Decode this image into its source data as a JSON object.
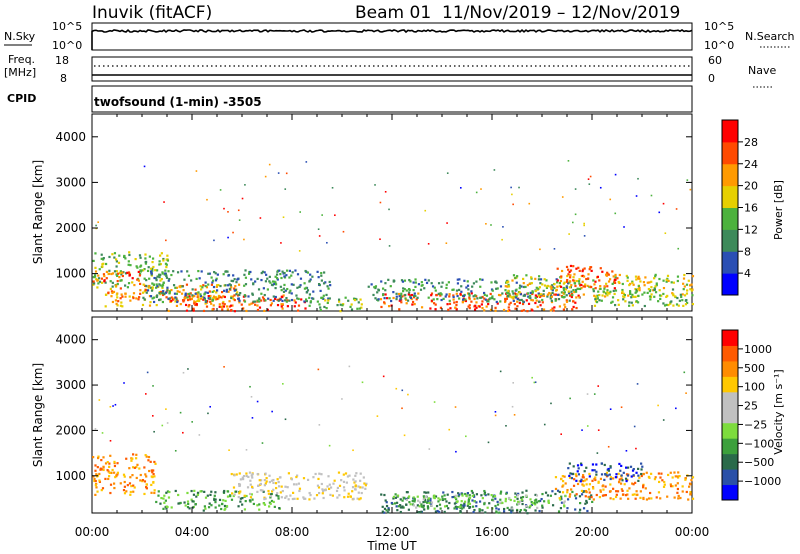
{
  "header": {
    "station": "Inuvik (fitACF)",
    "beam": "Beam 01",
    "date_range": "11/Nov/2019 – 12/Nov/2019"
  },
  "top_panels": {
    "nsky_label": "N.Sky",
    "nsky_ticks": [
      "10^5",
      "10^0"
    ],
    "nsearch_label": "N.Search",
    "nsearch_ticks": [
      "10^5",
      "10^0"
    ],
    "freq_label": "Freq.",
    "freq_unit": "[MHz]",
    "freq_ticks": [
      "18",
      "8"
    ],
    "nave_label": "Nave",
    "nave_ticks": [
      "60",
      "0"
    ],
    "cpid_label": "CPID",
    "cpid_text": "twofsound (1-min) -3505"
  },
  "colors": {
    "power": [
      "#0000ff",
      "#2a4fb4",
      "#3d8a5a",
      "#4cb23d",
      "#e6cf00",
      "#ff9a00",
      "#ff4a00",
      "#ff0000"
    ],
    "velocity": [
      "#ff0000",
      "#ff5a00",
      "#ff8c00",
      "#ffc800",
      "#c0c0c0",
      "#c0c0c0",
      "#7ddc3d",
      "#3ca03c",
      "#2a6a4a",
      "#2a50a8",
      "#0000ff"
    ]
  },
  "chart_data": [
    {
      "type": "heatmap",
      "name": "power",
      "ylabel": "Slant Range [km]",
      "ylim": [
        180,
        4500
      ],
      "yticks": [
        "1000",
        "2000",
        "3000",
        "4000"
      ],
      "xlim": [
        0,
        24
      ],
      "colorbar_label": "Power [dB]",
      "colorbar_ticks": [
        "4",
        "8",
        "12",
        "16",
        "20",
        "24",
        "28"
      ],
      "bands": [
        {
          "t0": 0.0,
          "t1": 3.0,
          "r0": 700,
          "r1": 1500,
          "c": 3
        },
        {
          "t0": 0.0,
          "t1": 2.0,
          "r0": 850,
          "r1": 1100,
          "c": 6
        },
        {
          "t0": 0.5,
          "t1": 6.0,
          "r0": 300,
          "r1": 800,
          "c": 5
        },
        {
          "t0": 3.0,
          "t1": 8.5,
          "r0": 200,
          "r1": 550,
          "c": 6
        },
        {
          "t0": 2.0,
          "t1": 9.5,
          "r0": 400,
          "r1": 1100,
          "c": 2
        },
        {
          "t0": 8.5,
          "t1": 10.8,
          "r0": 200,
          "r1": 500,
          "c": 3
        },
        {
          "t0": 11.5,
          "t1": 19.5,
          "r0": 200,
          "r1": 600,
          "c": 6
        },
        {
          "t0": 11.0,
          "t1": 19.5,
          "r0": 400,
          "r1": 900,
          "c": 2
        },
        {
          "t0": 16.5,
          "t1": 24.0,
          "r0": 500,
          "r1": 1000,
          "c": 4
        },
        {
          "t0": 18.5,
          "t1": 21.0,
          "r0": 700,
          "r1": 1200,
          "c": 6
        },
        {
          "t0": 20.0,
          "t1": 24.0,
          "r0": 300,
          "r1": 700,
          "c": 3
        }
      ]
    },
    {
      "type": "heatmap",
      "name": "velocity",
      "ylabel": "Slant Range [km]",
      "ylim": [
        180,
        4500
      ],
      "yticks": [
        "1000",
        "2000",
        "3000",
        "4000"
      ],
      "xlim": [
        0,
        24
      ],
      "xticks": [
        "00:00",
        "04:00",
        "08:00",
        "12:00",
        "16:00",
        "20:00",
        "00:00"
      ],
      "xlabel": "Time UT",
      "colorbar_label": "Velocity [m s⁻¹]",
      "colorbar_ticks": [
        "1000",
        "500",
        "100",
        "25",
        "−25",
        "−100",
        "−500",
        "−1000"
      ],
      "bands": [
        {
          "t0": 0.0,
          "t1": 2.5,
          "r0": 600,
          "r1": 1500,
          "c": 2
        },
        {
          "t0": 2.5,
          "t1": 7.5,
          "r0": 250,
          "r1": 700,
          "c": 7
        },
        {
          "t0": 5.5,
          "t1": 11.0,
          "r0": 500,
          "r1": 1100,
          "c": 4
        },
        {
          "t0": 11.5,
          "t1": 20.0,
          "r0": 200,
          "r1": 700,
          "c": 8
        },
        {
          "t0": 12.0,
          "t1": 19.0,
          "r0": 300,
          "r1": 600,
          "c": 6
        },
        {
          "t0": 18.5,
          "t1": 24.0,
          "r0": 500,
          "r1": 1100,
          "c": 2
        },
        {
          "t0": 19.0,
          "t1": 22.0,
          "r0": 900,
          "r1": 1300,
          "c": 9
        }
      ]
    }
  ]
}
